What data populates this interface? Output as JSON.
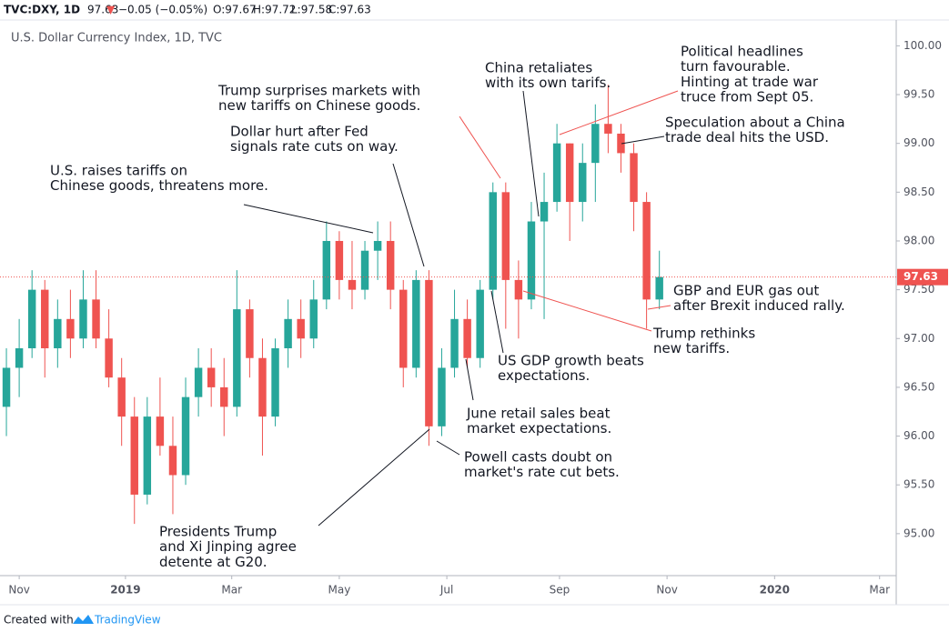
{
  "header": {
    "symbol": "TVC:DXY, 1D",
    "price": "97.63",
    "arrow": "▼",
    "change": "−0.05 (−0.05%)",
    "open": "O:97.67",
    "high": "H:97.72",
    "low": "L:97.58",
    "close": "C:97.63"
  },
  "footer": {
    "created": "Created with",
    "brand": "TradingView"
  },
  "chart_data": {
    "type": "candlestick",
    "title": "U.S. Dollar Currency Index, 1D, TVC",
    "up_color": "#26a69a",
    "down_color": "#ef5350",
    "categories": [
      null,
      null,
      null,
      null,
      null,
      null,
      null,
      null,
      null,
      null,
      null,
      null,
      null,
      null,
      null,
      null,
      null,
      null,
      null,
      null,
      null,
      null,
      null,
      null,
      null,
      null,
      null,
      null,
      null,
      null,
      null,
      null,
      null,
      null,
      null,
      null,
      null,
      null,
      null,
      null,
      null,
      null,
      null,
      null,
      null,
      null,
      null,
      null,
      null,
      null,
      null,
      null
    ],
    "open": [
      96.3,
      96.7,
      96.9,
      97.5,
      96.9,
      97.2,
      97.0,
      97.4,
      97.0,
      96.6,
      96.2,
      95.4,
      96.2,
      95.9,
      95.6,
      96.4,
      96.7,
      96.5,
      96.3,
      97.3,
      96.8,
      96.2,
      96.9,
      97.2,
      97.0,
      97.4,
      98.0,
      97.6,
      97.5,
      97.9,
      98.0,
      97.5,
      96.7,
      97.6,
      96.1,
      96.7,
      97.2,
      96.8,
      97.5,
      98.5,
      97.6,
      97.4,
      98.2,
      98.4,
      99.0,
      98.4,
      98.8,
      99.2,
      99.1,
      98.9,
      98.4,
      97.4
    ],
    "high": [
      96.9,
      97.2,
      97.7,
      97.6,
      97.4,
      97.5,
      97.7,
      97.7,
      97.3,
      96.8,
      96.4,
      96.4,
      96.6,
      96.2,
      96.6,
      96.9,
      96.9,
      96.8,
      97.7,
      97.4,
      97.0,
      97.0,
      97.4,
      97.4,
      97.6,
      98.2,
      98.1,
      98.0,
      98.0,
      98.2,
      98.2,
      97.6,
      97.7,
      97.7,
      96.9,
      97.5,
      97.4,
      97.6,
      98.6,
      98.6,
      97.8,
      98.4,
      98.7,
      99.2,
      99.0,
      99.0,
      99.4,
      99.6,
      99.2,
      99.0,
      98.5,
      97.9
    ],
    "low": [
      96.0,
      96.4,
      96.8,
      96.6,
      96.7,
      96.8,
      96.9,
      96.9,
      96.5,
      95.9,
      95.1,
      95.3,
      95.8,
      95.2,
      95.5,
      96.2,
      96.3,
      96.0,
      96.2,
      96.6,
      95.8,
      96.1,
      96.7,
      96.8,
      96.9,
      97.3,
      97.4,
      97.3,
      97.4,
      97.6,
      97.3,
      96.5,
      96.6,
      95.9,
      96.0,
      96.6,
      96.7,
      96.7,
      97.4,
      97.1,
      97.0,
      97.3,
      97.2,
      98.3,
      98.0,
      98.2,
      98.4,
      98.9,
      98.7,
      98.1,
      97.1,
      97.3
    ],
    "close": [
      96.7,
      96.9,
      97.5,
      96.9,
      97.2,
      97.0,
      97.4,
      97.0,
      96.6,
      96.2,
      95.4,
      96.2,
      95.9,
      95.6,
      96.4,
      96.7,
      96.5,
      96.3,
      97.3,
      96.8,
      96.2,
      96.9,
      97.2,
      97.0,
      97.4,
      98.0,
      97.6,
      97.5,
      97.9,
      98.0,
      97.5,
      96.7,
      97.6,
      96.1,
      96.7,
      97.2,
      96.8,
      97.5,
      98.5,
      97.6,
      97.4,
      98.2,
      98.4,
      99.0,
      98.4,
      98.8,
      99.2,
      99.1,
      98.9,
      98.4,
      97.4,
      97.63
    ],
    "xlim": [
      -0.5,
      69.5
    ],
    "xticks": [
      {
        "value": 1,
        "label": "Nov"
      },
      {
        "value": 9.3,
        "label": "2019"
      },
      {
        "value": 17.6,
        "label": "Mar"
      },
      {
        "value": 26,
        "label": "May"
      },
      {
        "value": 34.4,
        "label": "Jul"
      },
      {
        "value": 43.2,
        "label": "Sep"
      },
      {
        "value": 51.6,
        "label": "Nov"
      },
      {
        "value": 60,
        "label": "2020"
      },
      {
        "value": 68.2,
        "label": "Mar"
      }
    ],
    "ylim": [
      94.57,
      100.19
    ],
    "yticks": [
      {
        "value": 95,
        "label": "95.00"
      },
      {
        "value": 95.5,
        "label": "95.50"
      },
      {
        "value": 96,
        "label": "96.00"
      },
      {
        "value": 96.5,
        "label": "96.50"
      },
      {
        "value": 97,
        "label": "97.00"
      },
      {
        "value": 97.5,
        "label": "97.50"
      },
      {
        "value": 98,
        "label": "98.00"
      },
      {
        "value": 98.5,
        "label": "98.50"
      },
      {
        "value": 99,
        "label": "99.00"
      },
      {
        "value": 99.5,
        "label": "99.50"
      },
      {
        "value": 100,
        "label": "100.00"
      }
    ],
    "annotations": [
      {
        "lines": [
          "U.S. raises tariffs on",
          "Chinese goods, threatens more."
        ]
      },
      {
        "lines": [
          "Dollar hurt after Fed",
          "signals rate cuts on way."
        ]
      },
      {
        "lines": [
          "Trump surprises markets with",
          "new tariffs on Chinese goods."
        ]
      },
      {
        "lines": [
          "China retaliates",
          "with its own tarifs."
        ]
      },
      {
        "lines": [
          "Political headlines",
          "turn favourable.",
          "Hinting at trade war",
          "truce from Sept 05."
        ]
      },
      {
        "lines": [
          "Speculation about a China",
          "trade deal hits the USD."
        ]
      },
      {
        "lines": [
          "GBP and EUR gas out",
          "after Brexit induced rally."
        ]
      },
      {
        "lines": [
          "Trump rethinks",
          "new tariffs."
        ]
      },
      {
        "lines": [
          "US GDP growth beats",
          "expectations."
        ]
      },
      {
        "lines": [
          "June retail sales beat",
          "market expectations."
        ]
      },
      {
        "lines": [
          "Powell casts doubt on",
          "market's rate cut bets."
        ]
      },
      {
        "lines": [
          "Presidents Trump",
          "and Xi Jinping agree",
          "detente at G20."
        ]
      }
    ]
  }
}
